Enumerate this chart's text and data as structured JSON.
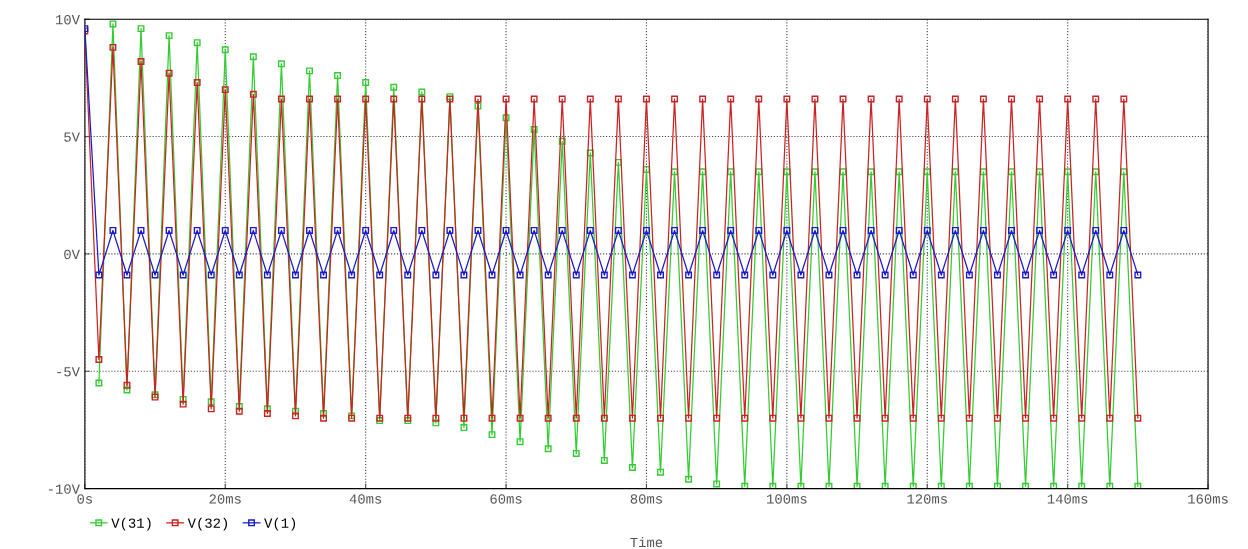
{
  "chart_data": {
    "type": "line",
    "xlabel": "Time",
    "x": [
      0,
      2,
      4,
      6,
      8,
      10,
      12,
      14,
      16,
      18,
      20,
      22,
      24,
      26,
      28,
      30,
      32,
      34,
      36,
      38,
      40,
      42,
      44,
      46,
      48,
      50,
      52,
      54,
      56,
      58,
      60,
      62,
      64,
      66,
      68,
      70,
      72,
      74,
      76,
      78,
      80,
      82,
      84,
      86,
      88,
      90,
      92,
      94,
      96,
      98,
      100,
      102,
      104,
      106,
      108,
      110,
      112,
      114,
      116,
      118,
      120,
      122,
      124,
      126,
      128,
      130,
      132,
      134,
      136,
      138,
      140,
      142,
      144,
      146,
      148,
      150
    ],
    "series": [
      {
        "name": "V(31)",
        "color": "#33cc33",
        "values": [
          null,
          -5.5,
          9.8,
          -5.8,
          9.6,
          -6.0,
          9.3,
          -6.2,
          9.0,
          -6.3,
          8.7,
          -6.5,
          8.4,
          -6.6,
          8.1,
          -6.7,
          7.8,
          -6.8,
          7.6,
          -6.9,
          7.3,
          -7.1,
          7.1,
          -7.1,
          6.9,
          -7.2,
          6.7,
          -7.4,
          6.3,
          -7.7,
          5.8,
          -8.0,
          5.3,
          -8.3,
          4.8,
          -8.5,
          4.3,
          -8.8,
          3.9,
          -9.1,
          3.6,
          -9.3,
          3.5,
          -9.6,
          3.5,
          -9.8,
          3.5,
          -9.9,
          3.5,
          -9.9,
          3.5,
          -9.9,
          3.5,
          -9.9,
          3.5,
          -9.9,
          3.5,
          -9.9,
          3.5,
          -9.9,
          3.5,
          -9.9,
          3.5,
          -9.9,
          3.5,
          -9.9,
          3.5,
          -9.9,
          3.5,
          -9.9,
          3.5,
          -9.9,
          3.5,
          -9.9,
          3.5,
          -9.9
        ]
      },
      {
        "name": "V(32)",
        "color": "#cc2222",
        "values": [
          9.5,
          -4.5,
          8.8,
          -5.6,
          8.2,
          -6.1,
          7.7,
          -6.4,
          7.3,
          -6.6,
          7.0,
          -6.7,
          6.8,
          -6.8,
          6.6,
          -6.9,
          6.6,
          -7.0,
          6.6,
          -7.0,
          6.6,
          -7.0,
          6.6,
          -7.0,
          6.6,
          -7.0,
          6.6,
          -7.0,
          6.6,
          -7.0,
          6.6,
          -7.0,
          6.6,
          -7.0,
          6.6,
          -7.0,
          6.6,
          -7.0,
          6.6,
          -7.0,
          6.6,
          -7.0,
          6.6,
          -7.0,
          6.6,
          -7.0,
          6.6,
          -7.0,
          6.6,
          -7.0,
          6.6,
          -7.0,
          6.6,
          -7.0,
          6.6,
          -7.0,
          6.6,
          -7.0,
          6.6,
          -7.0,
          6.6,
          -7.0,
          6.6,
          -7.0,
          6.6,
          -7.0,
          6.6,
          -7.0,
          6.6,
          -7.0,
          6.6,
          -7.0,
          6.6,
          -7.0,
          6.6,
          -7.0
        ]
      },
      {
        "name": "V(1)",
        "color": "#1a1acc",
        "values": [
          9.6,
          -0.9,
          1.0,
          -0.9,
          1.0,
          -0.9,
          1.0,
          -0.9,
          1.0,
          -0.9,
          1.0,
          -0.9,
          1.0,
          -0.9,
          1.0,
          -0.9,
          1.0,
          -0.9,
          1.0,
          -0.9,
          1.0,
          -0.9,
          1.0,
          -0.9,
          1.0,
          -0.9,
          1.0,
          -0.9,
          1.0,
          -0.9,
          1.0,
          -0.9,
          1.0,
          -0.9,
          1.0,
          -0.9,
          1.0,
          -0.9,
          1.0,
          -0.9,
          1.0,
          -0.9,
          1.0,
          -0.9,
          1.0,
          -0.9,
          1.0,
          -0.9,
          1.0,
          -0.9,
          1.0,
          -0.9,
          1.0,
          -0.9,
          1.0,
          -0.9,
          1.0,
          -0.9,
          1.0,
          -0.9,
          1.0,
          -0.9,
          1.0,
          -0.9,
          1.0,
          -0.9,
          1.0,
          -0.9,
          1.0,
          -0.9,
          1.0,
          -0.9,
          1.0,
          -0.9,
          1.0,
          -0.9
        ]
      }
    ],
    "xlim": [
      0,
      160
    ],
    "xticks": [
      {
        "value": 0,
        "label": "0s"
      },
      {
        "value": 20,
        "label": "20ms"
      },
      {
        "value": 40,
        "label": "40ms"
      },
      {
        "value": 60,
        "label": "60ms"
      },
      {
        "value": 80,
        "label": "80ms"
      },
      {
        "value": 100,
        "label": "100ms"
      },
      {
        "value": 120,
        "label": "120ms"
      },
      {
        "value": 140,
        "label": "140ms"
      },
      {
        "value": 160,
        "label": "160ms"
      }
    ],
    "ylim": [
      -10,
      10
    ],
    "yticks": [
      {
        "value": -10,
        "label": "-10V"
      },
      {
        "value": -5,
        "label": "-5V"
      },
      {
        "value": 0,
        "label": "0V"
      },
      {
        "value": 5,
        "label": "5V"
      },
      {
        "value": 10,
        "label": "10V"
      }
    ],
    "grid": true,
    "legend": "bottom",
    "marker": "square",
    "line_style": "solid"
  }
}
